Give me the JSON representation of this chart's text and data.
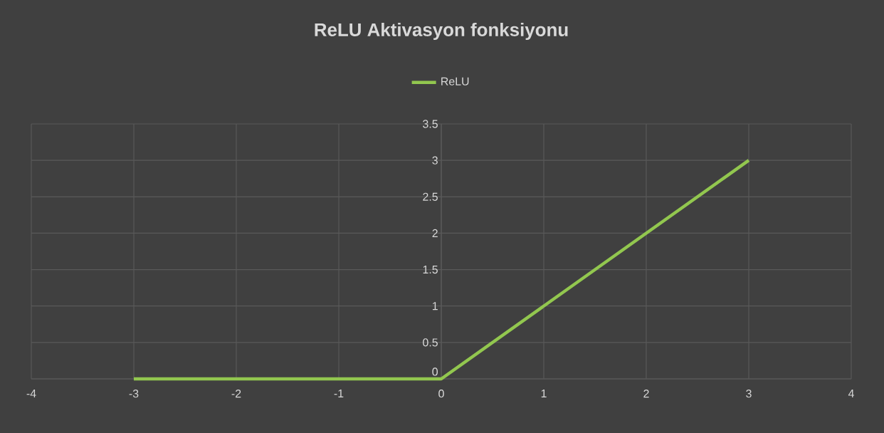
{
  "chart_data": {
    "type": "line",
    "title": "ReLU Aktivasyon fonksiyonu",
    "series": [
      {
        "name": "ReLU",
        "color": "#92c74f",
        "x": [
          -3,
          0,
          3
        ],
        "values": [
          0,
          0,
          3
        ]
      }
    ],
    "xlim": [
      -4,
      4
    ],
    "xticks": [
      -4,
      -3,
      -2,
      -1,
      0,
      1,
      2,
      3,
      4
    ],
    "ylim": [
      0,
      3.5
    ],
    "yticks": [
      0,
      0.5,
      1,
      1.5,
      2,
      2.5,
      3,
      3.5
    ],
    "grid": true,
    "legend": "top",
    "marker": "none",
    "line_style": "solid"
  }
}
